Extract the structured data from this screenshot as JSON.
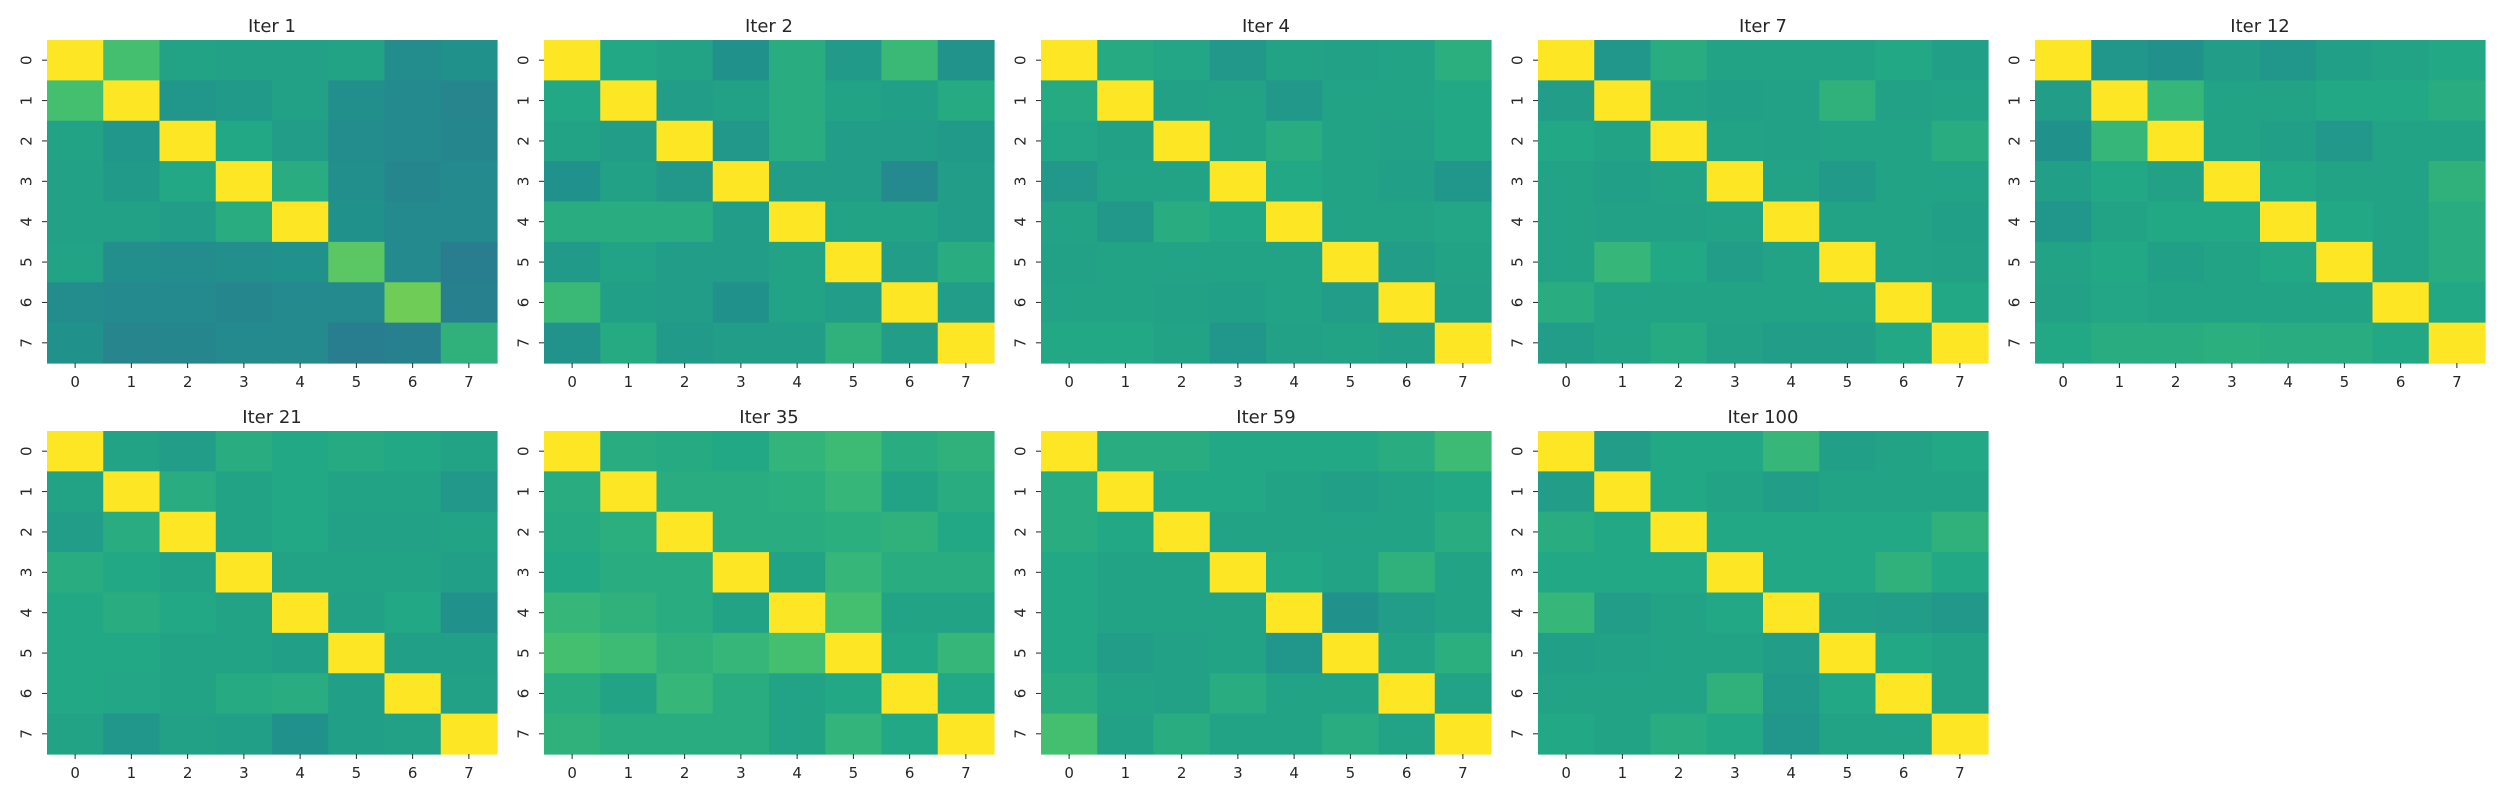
{
  "chart_data": {
    "type": "heatmap",
    "colormap": "viridis",
    "vmin": 0.0,
    "vmax": 1.0,
    "colorbar": false,
    "grid": false,
    "x_tick_labels": [
      "0",
      "1",
      "2",
      "3",
      "4",
      "5",
      "6",
      "7"
    ],
    "y_tick_labels": [
      "0",
      "1",
      "2",
      "3",
      "4",
      "5",
      "6",
      "7"
    ],
    "panels": [
      {
        "title": "Iter 1",
        "matrix": [
          [
            1.0,
            0.7,
            0.58,
            0.57,
            0.57,
            0.58,
            0.48,
            0.5
          ],
          [
            0.7,
            1.0,
            0.52,
            0.54,
            0.57,
            0.49,
            0.47,
            0.45
          ],
          [
            0.58,
            0.52,
            1.0,
            0.6,
            0.55,
            0.48,
            0.47,
            0.46
          ],
          [
            0.57,
            0.54,
            0.6,
            1.0,
            0.62,
            0.49,
            0.46,
            0.47
          ],
          [
            0.57,
            0.57,
            0.55,
            0.62,
            1.0,
            0.5,
            0.47,
            0.47
          ],
          [
            0.58,
            0.49,
            0.48,
            0.49,
            0.5,
            0.74,
            0.47,
            0.42
          ],
          [
            0.48,
            0.47,
            0.47,
            0.46,
            0.47,
            0.47,
            0.78,
            0.43
          ],
          [
            0.5,
            0.45,
            0.46,
            0.47,
            0.47,
            0.42,
            0.43,
            0.64
          ]
        ]
      },
      {
        "title": "Iter 2",
        "matrix": [
          [
            1.0,
            0.6,
            0.58,
            0.5,
            0.62,
            0.54,
            0.67,
            0.51
          ],
          [
            0.6,
            1.0,
            0.55,
            0.57,
            0.62,
            0.58,
            0.56,
            0.61
          ],
          [
            0.58,
            0.55,
            1.0,
            0.53,
            0.62,
            0.55,
            0.55,
            0.54
          ],
          [
            0.5,
            0.57,
            0.53,
            1.0,
            0.55,
            0.55,
            0.47,
            0.55
          ],
          [
            0.62,
            0.62,
            0.62,
            0.55,
            1.0,
            0.58,
            0.58,
            0.55
          ],
          [
            0.54,
            0.58,
            0.55,
            0.55,
            0.58,
            1.0,
            0.55,
            0.62
          ],
          [
            0.67,
            0.56,
            0.55,
            0.5,
            0.58,
            0.55,
            1.0,
            0.55
          ],
          [
            0.51,
            0.61,
            0.54,
            0.55,
            0.55,
            0.64,
            0.55,
            1.0
          ]
        ]
      },
      {
        "title": "Iter 4",
        "matrix": [
          [
            1.0,
            0.61,
            0.59,
            0.53,
            0.58,
            0.57,
            0.58,
            0.63
          ],
          [
            0.61,
            1.0,
            0.57,
            0.58,
            0.53,
            0.58,
            0.58,
            0.6
          ],
          [
            0.59,
            0.57,
            1.0,
            0.58,
            0.62,
            0.58,
            0.57,
            0.6
          ],
          [
            0.53,
            0.58,
            0.58,
            1.0,
            0.6,
            0.58,
            0.56,
            0.52
          ],
          [
            0.58,
            0.53,
            0.62,
            0.6,
            1.0,
            0.58,
            0.58,
            0.59
          ],
          [
            0.57,
            0.58,
            0.58,
            0.58,
            0.58,
            1.0,
            0.55,
            0.58
          ],
          [
            0.58,
            0.58,
            0.57,
            0.56,
            0.58,
            0.55,
            1.0,
            0.57
          ],
          [
            0.6,
            0.6,
            0.58,
            0.52,
            0.57,
            0.58,
            0.56,
            1.0
          ]
        ]
      },
      {
        "title": "Iter 7",
        "matrix": [
          [
            1.0,
            0.52,
            0.62,
            0.58,
            0.58,
            0.58,
            0.6,
            0.56
          ],
          [
            0.55,
            1.0,
            0.58,
            0.56,
            0.57,
            0.64,
            0.57,
            0.58
          ],
          [
            0.6,
            0.58,
            1.0,
            0.58,
            0.57,
            0.58,
            0.58,
            0.62
          ],
          [
            0.58,
            0.56,
            0.58,
            1.0,
            0.58,
            0.54,
            0.58,
            0.58
          ],
          [
            0.58,
            0.57,
            0.57,
            0.58,
            1.0,
            0.58,
            0.58,
            0.56
          ],
          [
            0.58,
            0.66,
            0.6,
            0.55,
            0.58,
            1.0,
            0.58,
            0.57
          ],
          [
            0.62,
            0.58,
            0.58,
            0.58,
            0.58,
            0.58,
            1.0,
            0.6
          ],
          [
            0.55,
            0.58,
            0.61,
            0.57,
            0.55,
            0.55,
            0.6,
            1.0
          ]
        ]
      },
      {
        "title": "Iter 12",
        "matrix": [
          [
            1.0,
            0.52,
            0.5,
            0.55,
            0.52,
            0.56,
            0.58,
            0.6
          ],
          [
            0.55,
            1.0,
            0.66,
            0.58,
            0.58,
            0.6,
            0.6,
            0.62
          ],
          [
            0.5,
            0.66,
            1.0,
            0.58,
            0.56,
            0.53,
            0.58,
            0.58
          ],
          [
            0.56,
            0.6,
            0.57,
            1.0,
            0.6,
            0.58,
            0.58,
            0.64
          ],
          [
            0.52,
            0.58,
            0.6,
            0.6,
            1.0,
            0.6,
            0.58,
            0.62
          ],
          [
            0.58,
            0.6,
            0.56,
            0.58,
            0.6,
            1.0,
            0.58,
            0.62
          ],
          [
            0.57,
            0.59,
            0.58,
            0.58,
            0.58,
            0.58,
            1.0,
            0.6
          ],
          [
            0.6,
            0.62,
            0.62,
            0.63,
            0.62,
            0.62,
            0.6,
            1.0
          ]
        ]
      },
      {
        "title": "Iter 21",
        "matrix": [
          [
            1.0,
            0.58,
            0.55,
            0.62,
            0.6,
            0.61,
            0.6,
            0.58
          ],
          [
            0.58,
            1.0,
            0.62,
            0.58,
            0.6,
            0.58,
            0.58,
            0.53
          ],
          [
            0.55,
            0.62,
            1.0,
            0.58,
            0.6,
            0.57,
            0.57,
            0.58
          ],
          [
            0.62,
            0.6,
            0.58,
            1.0,
            0.58,
            0.58,
            0.58,
            0.56
          ],
          [
            0.6,
            0.62,
            0.6,
            0.58,
            1.0,
            0.57,
            0.6,
            0.5
          ],
          [
            0.6,
            0.6,
            0.58,
            0.58,
            0.56,
            1.0,
            0.56,
            0.56
          ],
          [
            0.6,
            0.59,
            0.58,
            0.61,
            0.62,
            0.56,
            1.0,
            0.57
          ],
          [
            0.58,
            0.52,
            0.57,
            0.56,
            0.5,
            0.56,
            0.57,
            1.0
          ]
        ]
      },
      {
        "title": "Iter 35",
        "matrix": [
          [
            1.0,
            0.62,
            0.61,
            0.6,
            0.65,
            0.68,
            0.62,
            0.64
          ],
          [
            0.62,
            1.0,
            0.62,
            0.62,
            0.63,
            0.66,
            0.58,
            0.62
          ],
          [
            0.61,
            0.63,
            1.0,
            0.62,
            0.62,
            0.63,
            0.64,
            0.6
          ],
          [
            0.6,
            0.62,
            0.62,
            1.0,
            0.58,
            0.66,
            0.62,
            0.62
          ],
          [
            0.66,
            0.64,
            0.62,
            0.58,
            1.0,
            0.7,
            0.58,
            0.58
          ],
          [
            0.7,
            0.68,
            0.64,
            0.66,
            0.7,
            1.0,
            0.6,
            0.66
          ],
          [
            0.62,
            0.58,
            0.66,
            0.62,
            0.58,
            0.6,
            1.0,
            0.6
          ],
          [
            0.64,
            0.62,
            0.62,
            0.62,
            0.58,
            0.65,
            0.6,
            1.0
          ]
        ]
      },
      {
        "title": "Iter 59",
        "matrix": [
          [
            1.0,
            0.62,
            0.62,
            0.6,
            0.6,
            0.6,
            0.62,
            0.68
          ],
          [
            0.62,
            1.0,
            0.6,
            0.6,
            0.58,
            0.56,
            0.58,
            0.6
          ],
          [
            0.62,
            0.6,
            1.0,
            0.58,
            0.58,
            0.58,
            0.58,
            0.62
          ],
          [
            0.6,
            0.58,
            0.58,
            1.0,
            0.6,
            0.58,
            0.64,
            0.58
          ],
          [
            0.6,
            0.58,
            0.58,
            0.58,
            1.0,
            0.5,
            0.55,
            0.58
          ],
          [
            0.6,
            0.55,
            0.57,
            0.58,
            0.52,
            1.0,
            0.58,
            0.63
          ],
          [
            0.62,
            0.58,
            0.57,
            0.62,
            0.58,
            0.58,
            1.0,
            0.58
          ],
          [
            0.7,
            0.57,
            0.62,
            0.58,
            0.58,
            0.62,
            0.58,
            1.0
          ]
        ]
      },
      {
        "title": "Iter 100",
        "matrix": [
          [
            1.0,
            0.55,
            0.6,
            0.6,
            0.66,
            0.56,
            0.58,
            0.6
          ],
          [
            0.55,
            1.0,
            0.6,
            0.58,
            0.55,
            0.58,
            0.58,
            0.58
          ],
          [
            0.62,
            0.6,
            1.0,
            0.6,
            0.6,
            0.6,
            0.6,
            0.64
          ],
          [
            0.6,
            0.6,
            0.6,
            1.0,
            0.6,
            0.6,
            0.64,
            0.6
          ],
          [
            0.66,
            0.55,
            0.58,
            0.6,
            1.0,
            0.56,
            0.55,
            0.53
          ],
          [
            0.56,
            0.57,
            0.58,
            0.58,
            0.55,
            1.0,
            0.6,
            0.58
          ],
          [
            0.58,
            0.58,
            0.58,
            0.64,
            0.54,
            0.6,
            1.0,
            0.58
          ],
          [
            0.6,
            0.58,
            0.62,
            0.6,
            0.52,
            0.58,
            0.58,
            1.0
          ]
        ]
      }
    ]
  }
}
